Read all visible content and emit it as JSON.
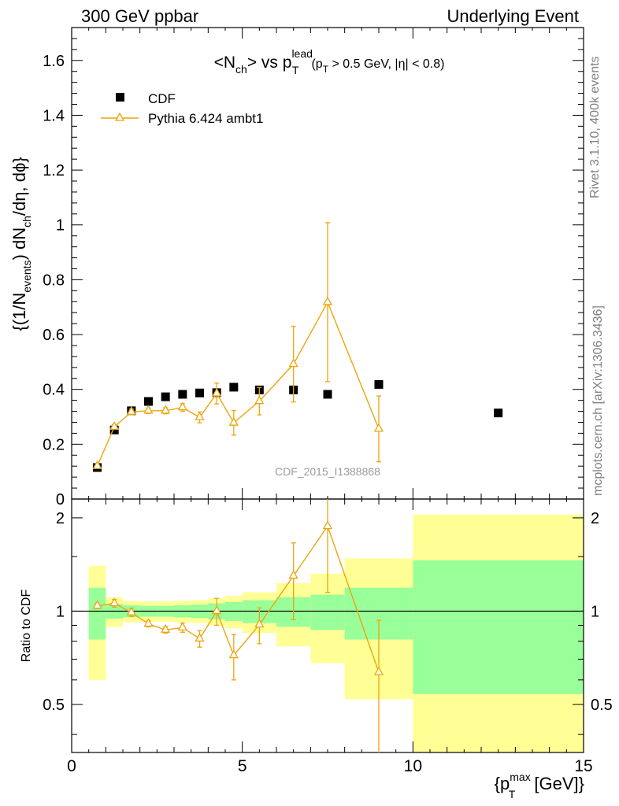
{
  "header": {
    "left": "300 GeV ppbar",
    "right": "Underlying Event"
  },
  "side_labels": {
    "upper": "Rivet 3.1.10,  400k events",
    "lower": "mcplots.cern.ch [arXiv:1306.3436]"
  },
  "watermark": "CDF_2015_I1388868",
  "chart_data": {
    "type": "scatter",
    "title": "<N_ch> vs p_T^lead (p_T > 0.5 GeV, |η| < 0.8)",
    "title_parts": {
      "main": "<N",
      "main_sub": "ch",
      "mid": "> vs p",
      "mid_sup": "lead",
      "mid_sub": "T",
      "paren_a": "(p",
      "paren_sub": "T",
      "paren_b": " > 0.5 GeV, |η| < 0.8)"
    },
    "xlabel": "{p_T^max [GeV]}",
    "xlabel_parts": {
      "pre": "{p",
      "sup": "max",
      "sub": "T",
      "post": " [GeV]}"
    },
    "ylabel": "{(1/N_events) dN_ch/dη, dϕ}",
    "ylabel_parts": {
      "a": "{(1/N",
      "a_sub": "events",
      "b": ") dN",
      "b_sub": "ch",
      "c": "/dη, dϕ}"
    },
    "ratio_ylabel": "Ratio to CDF",
    "xlim": [
      0,
      15
    ],
    "ylim": [
      0,
      1.72
    ],
    "ratio_ylim": [
      0.35,
      2.3
    ],
    "ratio_scale": "log",
    "x_ticks": [
      "0",
      "5",
      "10",
      "15"
    ],
    "y_ticks": [
      "0",
      "0.2",
      "0.4",
      "0.6",
      "0.8",
      "1",
      "1.2",
      "1.4",
      "1.6"
    ],
    "ratio_ticks": [
      "0.5",
      "1",
      "2"
    ],
    "legend_position": "top-left",
    "series": [
      {
        "name": "CDF",
        "color": "#000000",
        "marker": "square",
        "x": [
          0.75,
          1.25,
          1.75,
          2.25,
          2.75,
          3.25,
          3.75,
          4.25,
          4.75,
          5.5,
          6.5,
          7.5,
          9.0,
          12.5
        ],
        "xerr_low": [
          0.25,
          0.25,
          0.25,
          0.25,
          0.25,
          0.25,
          0.25,
          0.25,
          0.25,
          0.5,
          0.5,
          0.5,
          1.0,
          2.5
        ],
        "xerr_high": [
          0.25,
          0.25,
          0.25,
          0.25,
          0.25,
          0.25,
          0.25,
          0.25,
          0.25,
          0.5,
          0.5,
          0.5,
          1.0,
          2.5
        ],
        "y": [
          0.115,
          0.252,
          0.322,
          0.356,
          0.373,
          0.382,
          0.387,
          0.388,
          0.408,
          0.398,
          0.398,
          0.382,
          0.418,
          0.314
        ],
        "band_green": [
          0.19,
          0.055,
          0.045,
          0.04,
          0.04,
          0.045,
          0.05,
          0.06,
          0.07,
          0.085,
          0.11,
          0.13,
          0.19,
          0.46
        ],
        "band_yellow": [
          0.4,
          0.11,
          0.08,
          0.075,
          0.075,
          0.08,
          0.085,
          0.1,
          0.12,
          0.15,
          0.23,
          0.32,
          0.48,
          1.05
        ]
      },
      {
        "name": "Pythia 6.424 ambt1",
        "color": "#eca50e",
        "marker": "open-triangle",
        "x": [
          0.75,
          1.25,
          1.75,
          2.25,
          2.75,
          3.25,
          3.75,
          4.25,
          4.75,
          5.5,
          6.5,
          7.5,
          9.0
        ],
        "y": [
          0.12,
          0.263,
          0.318,
          0.322,
          0.322,
          0.334,
          0.298,
          0.385,
          0.278,
          0.357,
          0.492,
          0.718,
          0.256
        ],
        "yerr": [
          0.006,
          0.008,
          0.01,
          0.01,
          0.011,
          0.014,
          0.02,
          0.038,
          0.045,
          0.05,
          0.138,
          0.29,
          0.12
        ],
        "ratio": [
          1.04,
          1.06,
          0.99,
          0.91,
          0.87,
          0.885,
          0.815,
          1.0,
          0.72,
          0.905,
          1.3,
          1.88,
          0.635
        ],
        "ratio_err_low": [
          0.02,
          0.03,
          0.03,
          0.02,
          0.02,
          0.03,
          0.05,
          0.1,
          0.12,
          0.12,
          0.36,
          0.73,
          0.3
        ],
        "ratio_err_high": [
          0.02,
          0.03,
          0.03,
          0.02,
          0.02,
          0.03,
          0.05,
          0.1,
          0.12,
          0.12,
          0.36,
          0.73,
          0.3
        ]
      }
    ]
  }
}
